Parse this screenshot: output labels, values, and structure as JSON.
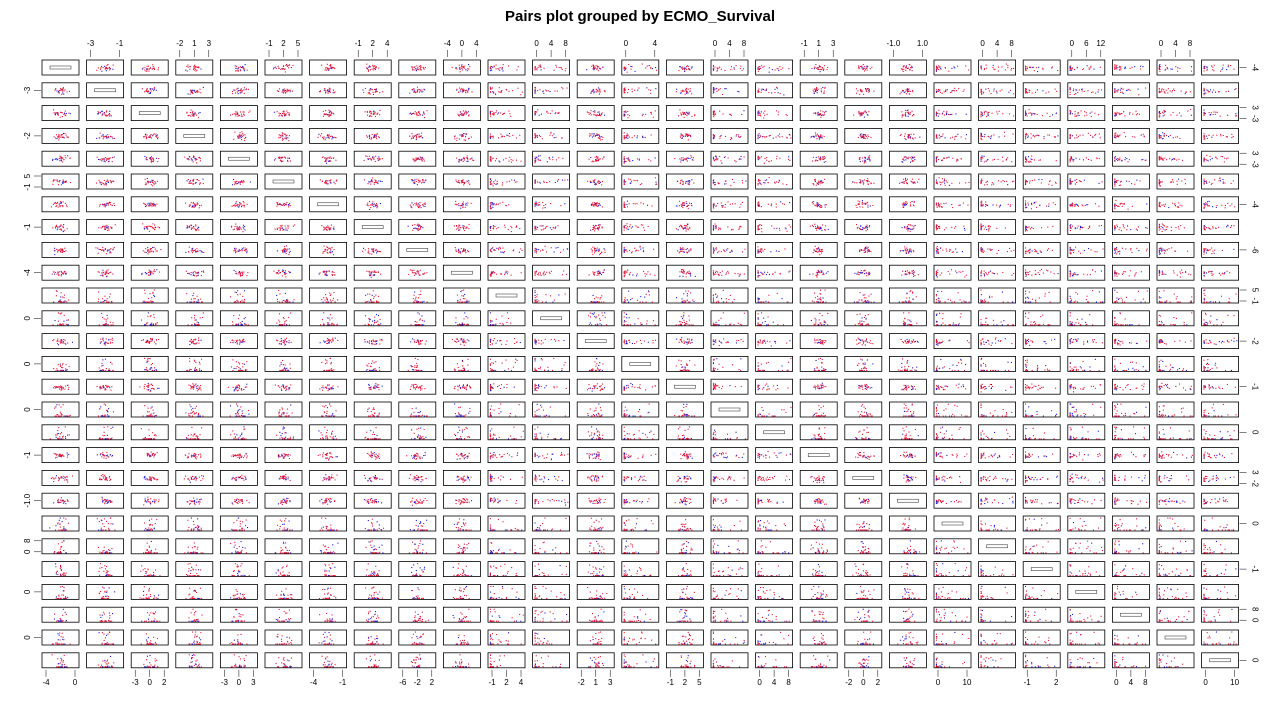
{
  "chart_data": {
    "type": "scatter",
    "title": "Pairs plot grouped by ECMO_Survival",
    "matrix": "pairs",
    "n_variables": 27,
    "groups": [
      {
        "name": "",
        "color": "#e3163a"
      },
      {
        "name": "",
        "color": "#1b1bd9"
      }
    ],
    "axis_ticks": {
      "top": [
        {
          "col": 1,
          "labels": [
            "-3",
            "-1"
          ]
        },
        {
          "col": 3,
          "labels": [
            "-2",
            "1",
            "3"
          ]
        },
        {
          "col": 5,
          "labels": [
            "-1",
            "2",
            "5"
          ]
        },
        {
          "col": 7,
          "labels": [
            "-1",
            "2",
            "4"
          ]
        },
        {
          "col": 9,
          "labels": [
            "-4",
            "0",
            "4"
          ]
        },
        {
          "col": 11,
          "labels": [
            "0",
            "4",
            "8"
          ]
        },
        {
          "col": 13,
          "labels": [
            "0",
            "4"
          ]
        },
        {
          "col": 15,
          "labels": [
            "0",
            "4",
            "8"
          ]
        },
        {
          "col": 17,
          "labels": [
            "-1",
            "1",
            "3"
          ]
        },
        {
          "col": 19,
          "labels": [
            "-1.0",
            "1.0"
          ]
        },
        {
          "col": 21,
          "labels": [
            "0",
            "4",
            "8"
          ]
        },
        {
          "col": 23,
          "labels": [
            "0",
            "6",
            "12"
          ]
        },
        {
          "col": 25,
          "labels": [
            "0",
            "4",
            "8"
          ]
        }
      ],
      "bottom": [
        {
          "col": 0,
          "labels": [
            "-4",
            "0"
          ]
        },
        {
          "col": 2,
          "labels": [
            "-3",
            "0",
            "2"
          ]
        },
        {
          "col": 4,
          "labels": [
            "-3",
            "0",
            "3"
          ]
        },
        {
          "col": 6,
          "labels": [
            "-4",
            "-1"
          ]
        },
        {
          "col": 8,
          "labels": [
            "-6",
            "-2",
            "2"
          ]
        },
        {
          "col": 10,
          "labels": [
            "-1",
            "2",
            "4"
          ]
        },
        {
          "col": 12,
          "labels": [
            "-2",
            "1",
            "3"
          ]
        },
        {
          "col": 14,
          "labels": [
            "-1",
            "2",
            "5"
          ]
        },
        {
          "col": 16,
          "labels": [
            "0",
            "4",
            "8"
          ]
        },
        {
          "col": 18,
          "labels": [
            "-2",
            "0",
            "2"
          ]
        },
        {
          "col": 20,
          "labels": [
            "0",
            "10"
          ]
        },
        {
          "col": 22,
          "labels": [
            "-1",
            "2"
          ]
        },
        {
          "col": 24,
          "labels": [
            "0",
            "4",
            "8"
          ]
        },
        {
          "col": 26,
          "labels": [
            "0",
            "10"
          ]
        }
      ],
      "left": [
        {
          "row": 1,
          "labels": [
            "-3"
          ]
        },
        {
          "row": 3,
          "labels": [
            "-2"
          ]
        },
        {
          "row": 5,
          "labels": [
            "-1",
            "5"
          ]
        },
        {
          "row": 7,
          "labels": [
            "-1"
          ]
        },
        {
          "row": 9,
          "labels": [
            "-4"
          ]
        },
        {
          "row": 11,
          "labels": [
            "0"
          ]
        },
        {
          "row": 13,
          "labels": [
            "0"
          ]
        },
        {
          "row": 15,
          "labels": [
            "0"
          ]
        },
        {
          "row": 17,
          "labels": [
            "-1"
          ]
        },
        {
          "row": 19,
          "labels": [
            "-1.0"
          ]
        },
        {
          "row": 21,
          "labels": [
            "0",
            "8"
          ]
        },
        {
          "row": 23,
          "labels": [
            "0"
          ]
        },
        {
          "row": 25,
          "labels": [
            "0"
          ]
        }
      ],
      "right": [
        {
          "row": 0,
          "labels": [
            "-4"
          ]
        },
        {
          "row": 2,
          "labels": [
            "-3",
            "3"
          ]
        },
        {
          "row": 4,
          "labels": [
            "-3",
            "3"
          ]
        },
        {
          "row": 6,
          "labels": [
            "-4"
          ]
        },
        {
          "row": 8,
          "labels": [
            "-6"
          ]
        },
        {
          "row": 10,
          "labels": [
            "-1",
            "5"
          ]
        },
        {
          "row": 12,
          "labels": [
            "-2"
          ]
        },
        {
          "row": 14,
          "labels": [
            "-1"
          ]
        },
        {
          "row": 16,
          "labels": [
            "0"
          ]
        },
        {
          "row": 18,
          "labels": [
            "-2",
            "3"
          ]
        },
        {
          "row": 20,
          "labels": [
            "0"
          ]
        },
        {
          "row": 22,
          "labels": [
            "-1"
          ]
        },
        {
          "row": 24,
          "labels": [
            "0",
            "8"
          ]
        },
        {
          "row": 26,
          "labels": [
            "0"
          ]
        }
      ]
    },
    "grid": false,
    "legend": "none"
  }
}
